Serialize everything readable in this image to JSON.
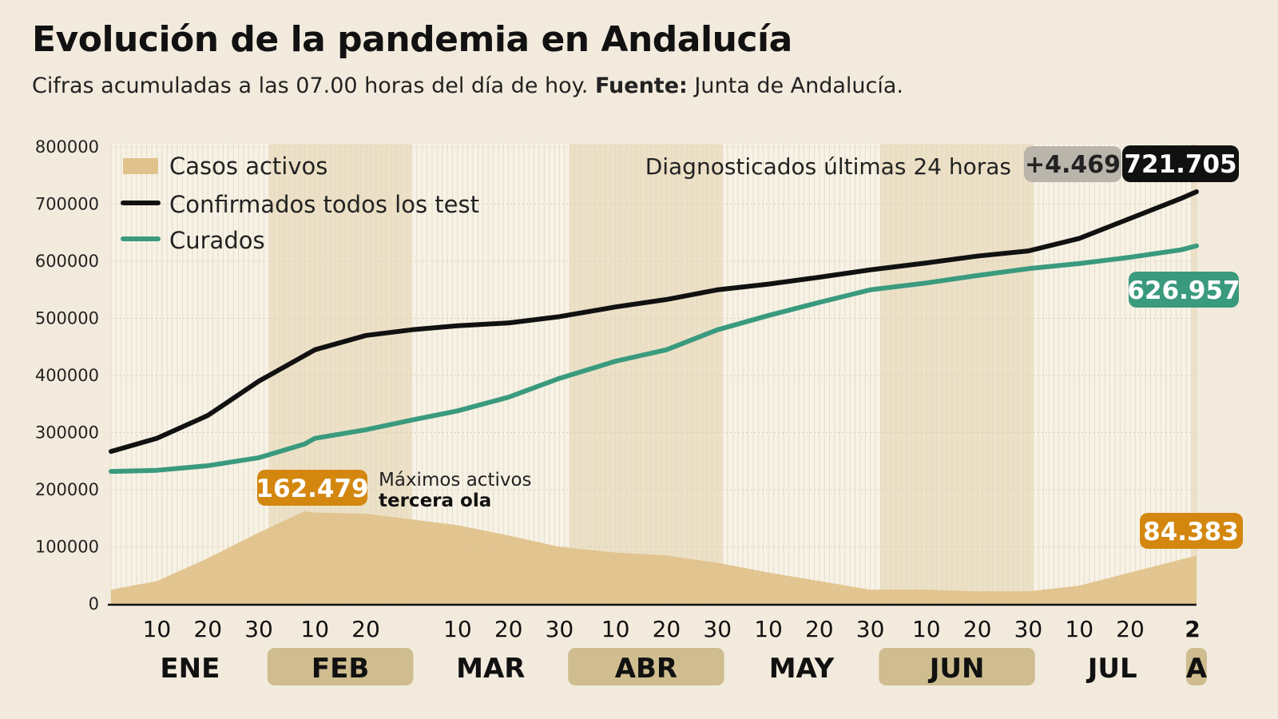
{
  "title": "Evolución de la pandemia en Andalucía",
  "subtitle": {
    "text": "Cifras acumuladas a las 07.00 horas del día de hoy.",
    "source_label": "Fuente:",
    "source": "Junta de Andalucía."
  },
  "colors": {
    "background": "#f2ebdd",
    "active": "#e0c28c",
    "confirmed": "#111111",
    "recovered": "#3a9a7e",
    "annotation": "#d4870f",
    "delta": "#b9b5aa",
    "month_band": "#cfbd8f"
  },
  "chart_data": {
    "type": "line",
    "ylim": [
      0,
      800000
    ],
    "yticks": [
      "0",
      "100000",
      "200000",
      "300000",
      "400000",
      "500000",
      "600000",
      "700000",
      "800000"
    ],
    "ytick_values": [
      0,
      100000,
      200000,
      300000,
      400000,
      500000,
      600000,
      700000,
      800000
    ],
    "xlim": [
      "01-01",
      "08-02"
    ],
    "xticks": [
      {
        "date": "01-10",
        "label": "10"
      },
      {
        "date": "01-20",
        "label": "20"
      },
      {
        "date": "01-30",
        "label": "30"
      },
      {
        "date": "02-10",
        "label": "10"
      },
      {
        "date": "02-20",
        "label": "20"
      },
      {
        "date": "03-10",
        "label": "10"
      },
      {
        "date": "03-20",
        "label": "20"
      },
      {
        "date": "03-30",
        "label": "30"
      },
      {
        "date": "04-10",
        "label": "10"
      },
      {
        "date": "04-20",
        "label": "20"
      },
      {
        "date": "04-30",
        "label": "30"
      },
      {
        "date": "05-10",
        "label": "10"
      },
      {
        "date": "05-20",
        "label": "20"
      },
      {
        "date": "05-30",
        "label": "30"
      },
      {
        "date": "06-10",
        "label": "10"
      },
      {
        "date": "06-20",
        "label": "20"
      },
      {
        "date": "06-30",
        "label": "30"
      },
      {
        "date": "07-10",
        "label": "10"
      },
      {
        "date": "07-20",
        "label": "20"
      },
      {
        "date": "08-02",
        "label": "2"
      }
    ],
    "months": [
      {
        "label": "ENE",
        "start": "01-01",
        "end": "01-31",
        "shaded": false
      },
      {
        "label": "FEB",
        "start": "02-01",
        "end": "02-28",
        "shaded": true
      },
      {
        "label": "MAR",
        "start": "03-01",
        "end": "03-31",
        "shaded": false
      },
      {
        "label": "ABR",
        "start": "04-01",
        "end": "04-30",
        "shaded": true
      },
      {
        "label": "MAY",
        "start": "05-01",
        "end": "05-31",
        "shaded": false
      },
      {
        "label": "JUN",
        "start": "06-01",
        "end": "06-30",
        "shaded": true
      },
      {
        "label": "JUL",
        "start": "07-01",
        "end": "07-31",
        "shaded": false
      },
      {
        "label": "A",
        "start": "08-01",
        "end": "08-02",
        "shaded": true
      }
    ],
    "grid": true,
    "legend": "top-left",
    "x": [
      "01-01",
      "01-10",
      "01-20",
      "01-30",
      "02-05",
      "02-08",
      "02-10",
      "02-20",
      "03-01",
      "03-10",
      "03-20",
      "03-30",
      "04-10",
      "04-20",
      "04-30",
      "05-10",
      "05-20",
      "05-30",
      "06-10",
      "06-20",
      "06-30",
      "07-10",
      "07-20",
      "07-30",
      "08-02"
    ],
    "series": [
      {
        "name": "Casos activos",
        "kind": "area",
        "values": [
          25000,
          40000,
          80000,
          125000,
          150000,
          162479,
          160000,
          158000,
          148000,
          138000,
          120000,
          100000,
          90000,
          85000,
          72000,
          55000,
          40000,
          25000,
          25000,
          22000,
          22000,
          32000,
          55000,
          78000,
          84383
        ]
      },
      {
        "name": "Confirmados todos los test",
        "kind": "line",
        "values": [
          267000,
          290000,
          330000,
          390000,
          420000,
          435000,
          445000,
          470000,
          480000,
          487000,
          492000,
          503000,
          520000,
          533000,
          550000,
          560000,
          572000,
          585000,
          597000,
          609000,
          618000,
          640000,
          675000,
          710000,
          721705
        ]
      },
      {
        "name": "Curados",
        "kind": "line",
        "values": [
          232000,
          234000,
          242000,
          256000,
          272000,
          280000,
          290000,
          305000,
          322000,
          338000,
          362000,
          395000,
          425000,
          445000,
          480000,
          505000,
          528000,
          550000,
          562000,
          575000,
          587000,
          596000,
          607000,
          620000,
          626957
        ]
      }
    ],
    "annotations": {
      "peak": {
        "value": "162.479",
        "line1": "Máximos activos",
        "line2": "tercera ola",
        "date": "02-08"
      },
      "header_label": "Diagnosticados últimas 24 horas",
      "delta": "+4.469",
      "confirmed_last": "721.705",
      "recovered_last": "626.957",
      "active_last": "84.383"
    }
  }
}
